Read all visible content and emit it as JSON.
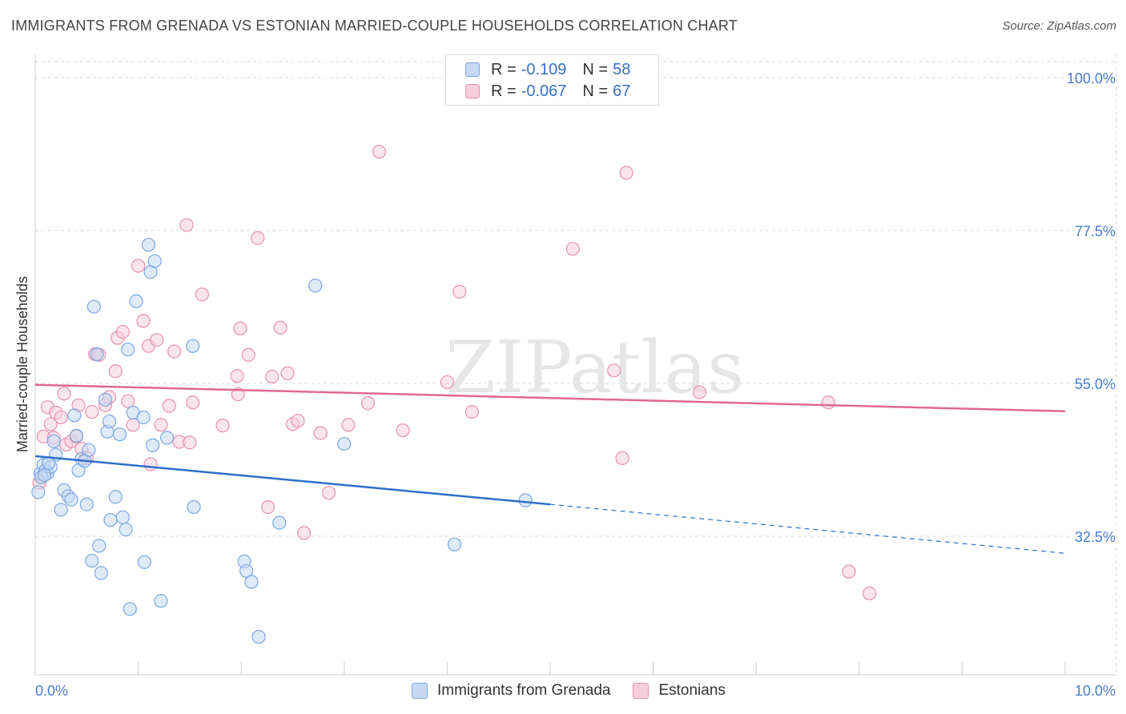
{
  "header": {
    "title": "IMMIGRANTS FROM GRENADA VS ESTONIAN MARRIED-COUPLE HOUSEHOLDS CORRELATION CHART",
    "source": "Source: ZipAtlas.com"
  },
  "colors": {
    "blue": "#7ba7e0",
    "blue_fill": "#c5d9f4",
    "blue_line": "#2e6fcc",
    "pink": "#e890ad",
    "pink_fill": "#f7cfdc",
    "pink_line": "#e06890",
    "tick_blue": "#4a7cc9"
  },
  "legend": {
    "rows": [
      {
        "r_label": "R =",
        "r_value": "-0.109",
        "n_label": "N =",
        "n_value": "58"
      },
      {
        "r_label": "R =",
        "r_value": "-0.067",
        "n_label": "N =",
        "n_value": "67"
      }
    ]
  },
  "bottom_legend": {
    "series1": "Immigrants from Grenada",
    "series2": "Estonians"
  },
  "chart_data": {
    "type": "scatter",
    "title": "IMMIGRANTS FROM GRENADA VS ESTONIAN MARRIED-COUPLE HOUSEHOLDS CORRELATION CHART",
    "xlabel": "",
    "ylabel": "Married-couple Households",
    "xlim": [
      0,
      10
    ],
    "ylim": [
      12,
      103
    ],
    "x_tick_labels": [
      "0.0%",
      "10.0%"
    ],
    "y_ticks": [
      32.5,
      55.0,
      77.5,
      100.0
    ],
    "y_tick_labels": [
      "32.5%",
      "55.0%",
      "77.5%",
      "100.0%"
    ],
    "watermark": "ZIPatlas",
    "series": [
      {
        "name": "Immigrants from Grenada",
        "color": "#7ba7e0",
        "trend": {
          "x0": 0,
          "y0": 44.3,
          "x1": 5.0,
          "y1": 37.2,
          "dash_to_x": 10,
          "dash_to_y": 30.0
        },
        "points": [
          {
            "x": 0.03,
            "y": 39.0
          },
          {
            "x": 0.05,
            "y": 41.7
          },
          {
            "x": 0.08,
            "y": 43.0
          },
          {
            "x": 0.1,
            "y": 42.2
          },
          {
            "x": 0.12,
            "y": 41.8
          },
          {
            "x": 0.15,
            "y": 42.7
          },
          {
            "x": 0.18,
            "y": 46.5
          },
          {
            "x": 0.2,
            "y": 44.5
          },
          {
            "x": 0.25,
            "y": 36.4
          },
          {
            "x": 0.28,
            "y": 39.3
          },
          {
            "x": 0.32,
            "y": 38.4
          },
          {
            "x": 0.35,
            "y": 37.9
          },
          {
            "x": 0.38,
            "y": 50.3
          },
          {
            "x": 0.4,
            "y": 47.3
          },
          {
            "x": 0.42,
            "y": 42.2
          },
          {
            "x": 0.45,
            "y": 43.9
          },
          {
            "x": 0.48,
            "y": 43.6
          },
          {
            "x": 0.5,
            "y": 37.2
          },
          {
            "x": 0.52,
            "y": 45.2
          },
          {
            "x": 0.55,
            "y": 28.9
          },
          {
            "x": 0.57,
            "y": 66.3
          },
          {
            "x": 0.6,
            "y": 59.3
          },
          {
            "x": 0.62,
            "y": 31.1
          },
          {
            "x": 0.64,
            "y": 27.1
          },
          {
            "x": 0.68,
            "y": 52.6
          },
          {
            "x": 0.7,
            "y": 47.9
          },
          {
            "x": 0.72,
            "y": 49.4
          },
          {
            "x": 0.73,
            "y": 34.9
          },
          {
            "x": 0.78,
            "y": 38.3
          },
          {
            "x": 0.82,
            "y": 47.5
          },
          {
            "x": 0.85,
            "y": 35.3
          },
          {
            "x": 0.88,
            "y": 33.5
          },
          {
            "x": 0.9,
            "y": 60.0
          },
          {
            "x": 0.92,
            "y": 21.8
          },
          {
            "x": 0.95,
            "y": 50.7
          },
          {
            "x": 0.98,
            "y": 67.1
          },
          {
            "x": 1.05,
            "y": 50.0
          },
          {
            "x": 1.06,
            "y": 28.7
          },
          {
            "x": 1.1,
            "y": 75.4
          },
          {
            "x": 1.12,
            "y": 71.4
          },
          {
            "x": 1.14,
            "y": 45.9
          },
          {
            "x": 1.16,
            "y": 73.0
          },
          {
            "x": 1.22,
            "y": 23.0
          },
          {
            "x": 1.28,
            "y": 47.0
          },
          {
            "x": 1.53,
            "y": 60.5
          },
          {
            "x": 1.54,
            "y": 36.8
          },
          {
            "x": 2.03,
            "y": 28.8
          },
          {
            "x": 2.05,
            "y": 27.4
          },
          {
            "x": 2.1,
            "y": 25.8
          },
          {
            "x": 2.17,
            "y": 17.7
          },
          {
            "x": 2.37,
            "y": 34.5
          },
          {
            "x": 2.72,
            "y": 69.4
          },
          {
            "x": 3.0,
            "y": 46.1
          },
          {
            "x": 4.07,
            "y": 31.3
          },
          {
            "x": 4.76,
            "y": 37.8
          },
          {
            "x": 0.06,
            "y": 41.2
          },
          {
            "x": 0.09,
            "y": 41.5
          },
          {
            "x": 0.13,
            "y": 43.3
          }
        ]
      },
      {
        "name": "Estonians",
        "color": "#e890ad",
        "trend": {
          "x0": 0,
          "y0": 54.8,
          "x1": 10,
          "y1": 50.9
        },
        "points": [
          {
            "x": 0.04,
            "y": 40.4
          },
          {
            "x": 0.08,
            "y": 47.2
          },
          {
            "x": 0.12,
            "y": 51.5
          },
          {
            "x": 0.15,
            "y": 49.0
          },
          {
            "x": 0.2,
            "y": 50.7
          },
          {
            "x": 0.25,
            "y": 50.0
          },
          {
            "x": 0.28,
            "y": 53.5
          },
          {
            "x": 0.3,
            "y": 46.0
          },
          {
            "x": 0.35,
            "y": 46.5
          },
          {
            "x": 0.4,
            "y": 47.2
          },
          {
            "x": 0.42,
            "y": 51.8
          },
          {
            "x": 0.45,
            "y": 45.4
          },
          {
            "x": 0.5,
            "y": 44.0
          },
          {
            "x": 0.55,
            "y": 50.8
          },
          {
            "x": 0.58,
            "y": 59.3
          },
          {
            "x": 0.62,
            "y": 59.2
          },
          {
            "x": 0.68,
            "y": 51.8
          },
          {
            "x": 0.72,
            "y": 53.0
          },
          {
            "x": 0.78,
            "y": 56.8
          },
          {
            "x": 0.8,
            "y": 61.7
          },
          {
            "x": 0.85,
            "y": 62.6
          },
          {
            "x": 0.9,
            "y": 52.4
          },
          {
            "x": 0.95,
            "y": 48.9
          },
          {
            "x": 1.0,
            "y": 72.3
          },
          {
            "x": 1.05,
            "y": 64.2
          },
          {
            "x": 1.1,
            "y": 60.5
          },
          {
            "x": 1.12,
            "y": 43.1
          },
          {
            "x": 1.18,
            "y": 61.4
          },
          {
            "x": 1.22,
            "y": 48.9
          },
          {
            "x": 1.3,
            "y": 51.7
          },
          {
            "x": 1.35,
            "y": 59.7
          },
          {
            "x": 1.4,
            "y": 46.4
          },
          {
            "x": 1.47,
            "y": 78.3
          },
          {
            "x": 1.5,
            "y": 46.3
          },
          {
            "x": 1.53,
            "y": 52.2
          },
          {
            "x": 1.62,
            "y": 68.1
          },
          {
            "x": 1.82,
            "y": 48.8
          },
          {
            "x": 1.96,
            "y": 56.1
          },
          {
            "x": 1.97,
            "y": 53.4
          },
          {
            "x": 1.99,
            "y": 63.1
          },
          {
            "x": 2.07,
            "y": 59.2
          },
          {
            "x": 2.16,
            "y": 76.4
          },
          {
            "x": 2.26,
            "y": 36.8
          },
          {
            "x": 2.3,
            "y": 56.0
          },
          {
            "x": 2.38,
            "y": 63.2
          },
          {
            "x": 2.45,
            "y": 56.5
          },
          {
            "x": 2.5,
            "y": 49.0
          },
          {
            "x": 2.55,
            "y": 49.5
          },
          {
            "x": 2.61,
            "y": 33.0
          },
          {
            "x": 2.77,
            "y": 47.7
          },
          {
            "x": 2.85,
            "y": 38.9
          },
          {
            "x": 3.04,
            "y": 48.9
          },
          {
            "x": 3.23,
            "y": 52.1
          },
          {
            "x": 3.34,
            "y": 89.1
          },
          {
            "x": 3.57,
            "y": 48.1
          },
          {
            "x": 4.0,
            "y": 55.2
          },
          {
            "x": 4.12,
            "y": 68.5
          },
          {
            "x": 4.24,
            "y": 50.8
          },
          {
            "x": 5.22,
            "y": 74.8
          },
          {
            "x": 5.62,
            "y": 56.9
          },
          {
            "x": 5.7,
            "y": 44.0
          },
          {
            "x": 5.74,
            "y": 86.0
          },
          {
            "x": 6.45,
            "y": 53.7
          },
          {
            "x": 7.7,
            "y": 52.2
          },
          {
            "x": 7.9,
            "y": 27.3
          },
          {
            "x": 8.1,
            "y": 24.1
          },
          {
            "x": 0.18,
            "y": 47.0
          }
        ]
      }
    ]
  }
}
